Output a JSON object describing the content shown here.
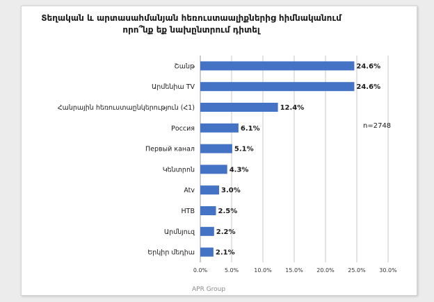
{
  "chart_data": {
    "type": "bar",
    "orientation": "horizontal",
    "title": "Տեղական և արտասահմանյան հեռուստաալիքներից հիմնականում որո՞նք եք նախընտրում դիտել",
    "categories": [
      "Շանթ",
      "Արմենիա TV",
      "Հանրային հեռուստաընկերություն (Հ1)",
      "Россия",
      "Первый канал",
      "Կենտրոն",
      "Atv",
      "НТВ",
      "Արմնյուզ",
      "Երկիր մեդիա"
    ],
    "values": [
      24.6,
      24.6,
      12.4,
      6.1,
      5.1,
      4.3,
      3.0,
      2.5,
      2.2,
      2.1
    ],
    "value_labels": [
      "24.6%",
      "24.6%",
      "12.4%",
      "6.1%",
      "5.1%",
      "4.3%",
      "3.0%",
      "2.5%",
      "2.2%",
      "2.1%"
    ],
    "x_ticks": [
      0,
      5,
      10,
      15,
      20,
      25,
      30
    ],
    "x_tick_labels": [
      "0.0%",
      "5.0%",
      "10.0%",
      "15.0%",
      "20.0%",
      "25.0%",
      "30.0%"
    ],
    "xlim": [
      0,
      30
    ],
    "grid": "vertical",
    "annotation": "n=2748",
    "bar_color": "#4472c4"
  },
  "footer": "APR Group"
}
